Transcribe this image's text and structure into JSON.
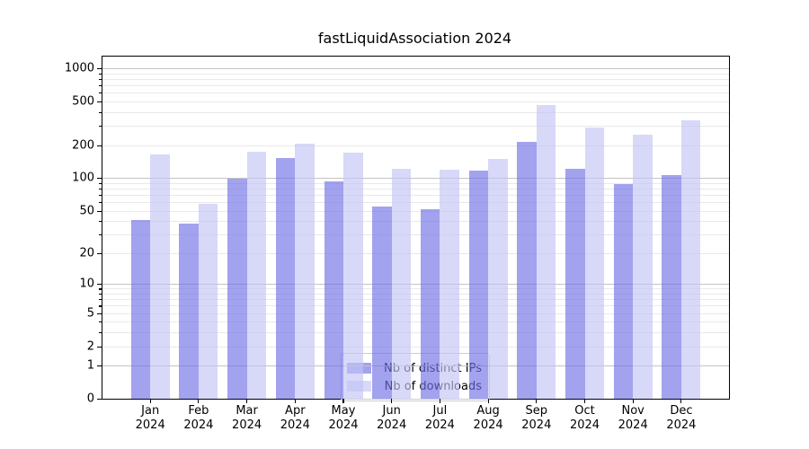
{
  "chart_data": {
    "type": "bar",
    "title": "fastLiquidAssociation 2024",
    "categories": [
      "Jan 2024",
      "Feb 2024",
      "Mar 2024",
      "Apr 2024",
      "May 2024",
      "Jun 2024",
      "Jul 2024",
      "Aug 2024",
      "Sep 2024",
      "Oct 2024",
      "Nov 2024",
      "Dec 2024"
    ],
    "series": [
      {
        "name": "Nb of distinct IPs",
        "color": "rgba(112,112,230,0.65)",
        "values": [
          41,
          38,
          98,
          154,
          94,
          55,
          52,
          116,
          215,
          121,
          88,
          107
        ]
      },
      {
        "name": "Nb of downloads",
        "color": "rgba(195,195,244,0.65)",
        "values": [
          166,
          58,
          175,
          205,
          172,
          121,
          119,
          151,
          460,
          291,
          250,
          337
        ]
      }
    ],
    "y_axis": {
      "scale": "log1p",
      "labeled_ticks": [
        0,
        1,
        2,
        5,
        10,
        20,
        50,
        100,
        200,
        500,
        1000
      ],
      "major_gridline_ticks": [
        1,
        10,
        100,
        1000
      ],
      "ylim": [
        0,
        1300
      ],
      "grid": "on"
    },
    "legend": {
      "position": "inside-bottom-center",
      "items": [
        "Nb of distinct IPs",
        "Nb of downloads"
      ]
    }
  }
}
